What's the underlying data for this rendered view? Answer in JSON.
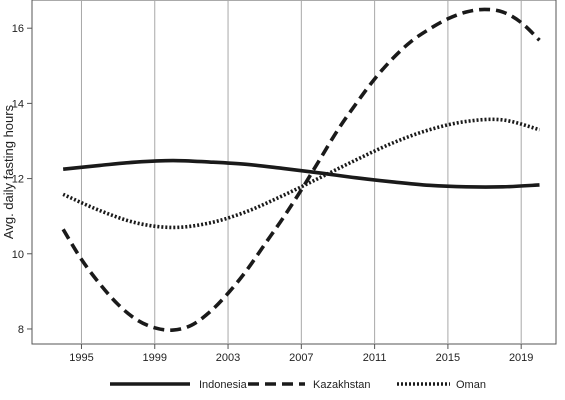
{
  "chart_data": {
    "type": "line",
    "title": "",
    "xlabel": "",
    "ylabel": "Avg. daily fasting hours",
    "xlim": [
      1992.3,
      2020.9
    ],
    "ylim": [
      7.6,
      16.75
    ],
    "xticks": [
      1995,
      1999,
      2003,
      2007,
      2011,
      2015,
      2019
    ],
    "xtick_labels": [
      "1995",
      "1999",
      "2003",
      "2007",
      "2011",
      "2015",
      "2019"
    ],
    "yticks": [
      8,
      10,
      12,
      14,
      16
    ],
    "ytick_labels": [
      "8",
      "10",
      "12",
      "14",
      "16"
    ],
    "grid": "vertical",
    "legend_position": "bottom",
    "series": [
      {
        "name": "Indonesia",
        "style": "solid",
        "color": "#1a1a1a",
        "x": [
          1994,
          1996,
          1998,
          2000,
          2002,
          2004,
          2006,
          2008,
          2010,
          2012,
          2014,
          2016,
          2018,
          2020
        ],
        "y": [
          12.25,
          12.35,
          12.44,
          12.48,
          12.44,
          12.38,
          12.27,
          12.15,
          12.02,
          11.91,
          11.82,
          11.78,
          11.78,
          11.83
        ]
      },
      {
        "name": "Kazakhstan",
        "style": "dashed",
        "color": "#1a1a1a",
        "x": [
          1994,
          1995,
          1996,
          1997,
          1998,
          1999,
          2000,
          2001,
          2002,
          2003,
          2004,
          2005,
          2006,
          2007,
          2008,
          2009,
          2010,
          2011,
          2012,
          2013,
          2014,
          2015,
          2016,
          2017,
          2018,
          2019,
          2020
        ],
        "y": [
          10.65,
          9.85,
          9.2,
          8.65,
          8.25,
          8.03,
          7.97,
          8.1,
          8.45,
          8.95,
          9.55,
          10.25,
          10.95,
          11.7,
          12.5,
          13.3,
          14.0,
          14.65,
          15.2,
          15.65,
          15.98,
          16.25,
          16.43,
          16.5,
          16.43,
          16.15,
          15.68
        ]
      },
      {
        "name": "Oman",
        "style": "dotted",
        "color": "#1a1a1a",
        "x": [
          1994,
          1996,
          1998,
          2000,
          2002,
          2004,
          2006,
          2008,
          2010,
          2012,
          2014,
          2016,
          2018,
          2020
        ],
        "y": [
          11.58,
          11.15,
          10.82,
          10.7,
          10.82,
          11.12,
          11.55,
          12.02,
          12.5,
          12.95,
          13.3,
          13.52,
          13.56,
          13.3
        ]
      }
    ]
  }
}
